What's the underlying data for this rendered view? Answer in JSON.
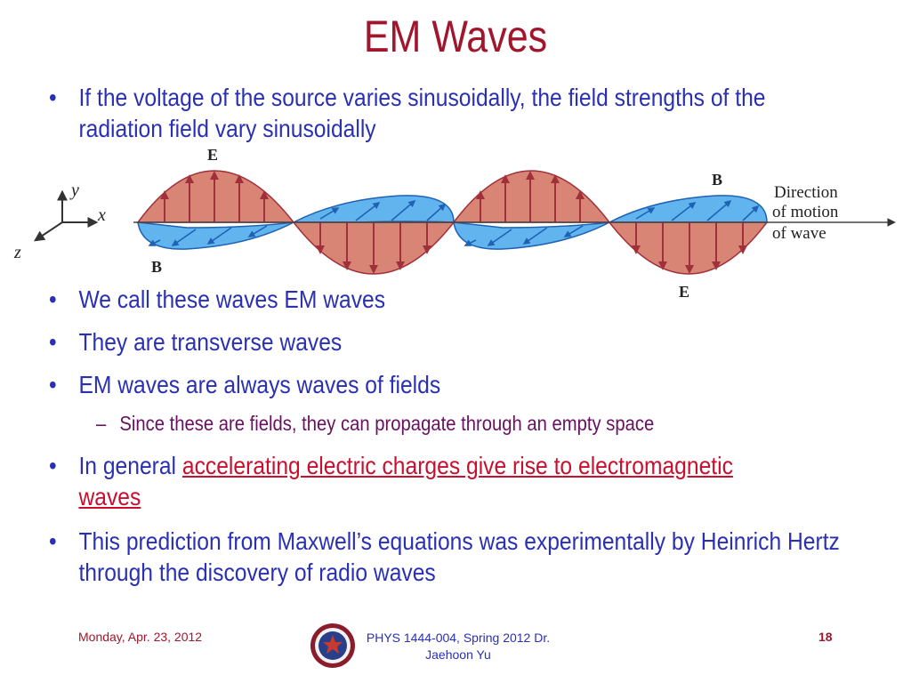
{
  "slide": {
    "title": "EM Waves",
    "bullets": [
      "If the voltage of the source varies sinusoidally, the field strengths of the radiation field vary sinusoidally",
      "We call these waves EM waves",
      "They are transverse waves",
      "EM waves are always waves of fields"
    ],
    "sub_bullet": "Since these are fields, they can propagate through an empty space",
    "bullet5": {
      "prefix": "In general ",
      "highlight": "accelerating electric charges give rise to electromagnetic waves"
    },
    "bullet6": "This prediction from Maxwell’s equations was experimentally by Heinrich Hertz through the discovery of radio waves",
    "bullet_symbol": "•",
    "sub_symbol": "–"
  },
  "diagram": {
    "label_E_top": "E",
    "label_E_bottom": "E",
    "label_B_top": "B",
    "label_B_bottom": "B",
    "axis_x": "x",
    "axis_y": "y",
    "axis_z": "z",
    "direction_lines": [
      "Direction",
      "of motion",
      "of wave"
    ],
    "colors": {
      "e_fill": "#d98575",
      "e_stroke": "#a0303a",
      "b_fill": "#62b4ee",
      "b_stroke": "#1e62b4"
    }
  },
  "footer": {
    "date": "Monday, Apr. 23, 2012",
    "course": "PHYS 1444-004, Spring 2012 Dr.",
    "instructor": "Jaehoon Yu",
    "page": "18"
  }
}
